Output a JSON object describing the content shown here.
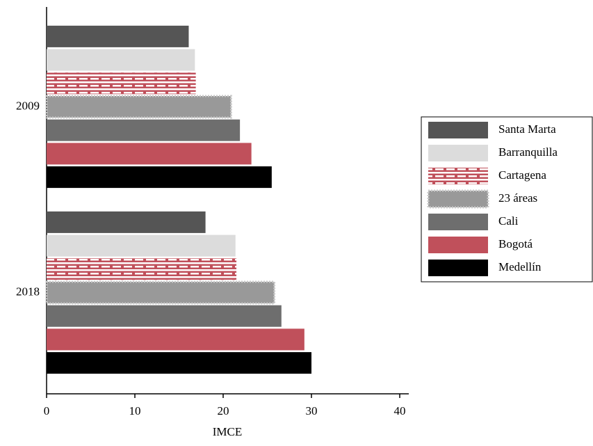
{
  "chart_data": {
    "type": "bar",
    "orientation": "horizontal",
    "x_label": "IMCE",
    "categories": [
      "2009",
      "2018"
    ],
    "series": [
      {
        "name": "Santa Marta",
        "color": "#555555",
        "values": [
          16.1,
          18.0
        ]
      },
      {
        "name": "Barranquilla",
        "color": "#dcdcdc",
        "values": [
          16.8,
          21.4
        ]
      },
      {
        "name": "Cartagena",
        "color": "#c0505b",
        "pattern": "dashes",
        "values": [
          16.9,
          21.5
        ]
      },
      {
        "name": "23 áreas",
        "color": "#999999",
        "border": "dotted",
        "values": [
          20.9,
          25.8
        ]
      },
      {
        "name": "Cali",
        "color": "#6e6e6e",
        "values": [
          21.9,
          26.6
        ]
      },
      {
        "name": "Bogotá",
        "color": "#c0505b",
        "values": [
          23.2,
          29.2
        ]
      },
      {
        "name": "Medellín",
        "color": "#000000",
        "values": [
          25.5,
          30.0
        ]
      }
    ],
    "xlim": [
      0,
      41
    ],
    "xticks": [
      0,
      10,
      20,
      30,
      40
    ],
    "grid": false,
    "legend": "right"
  }
}
